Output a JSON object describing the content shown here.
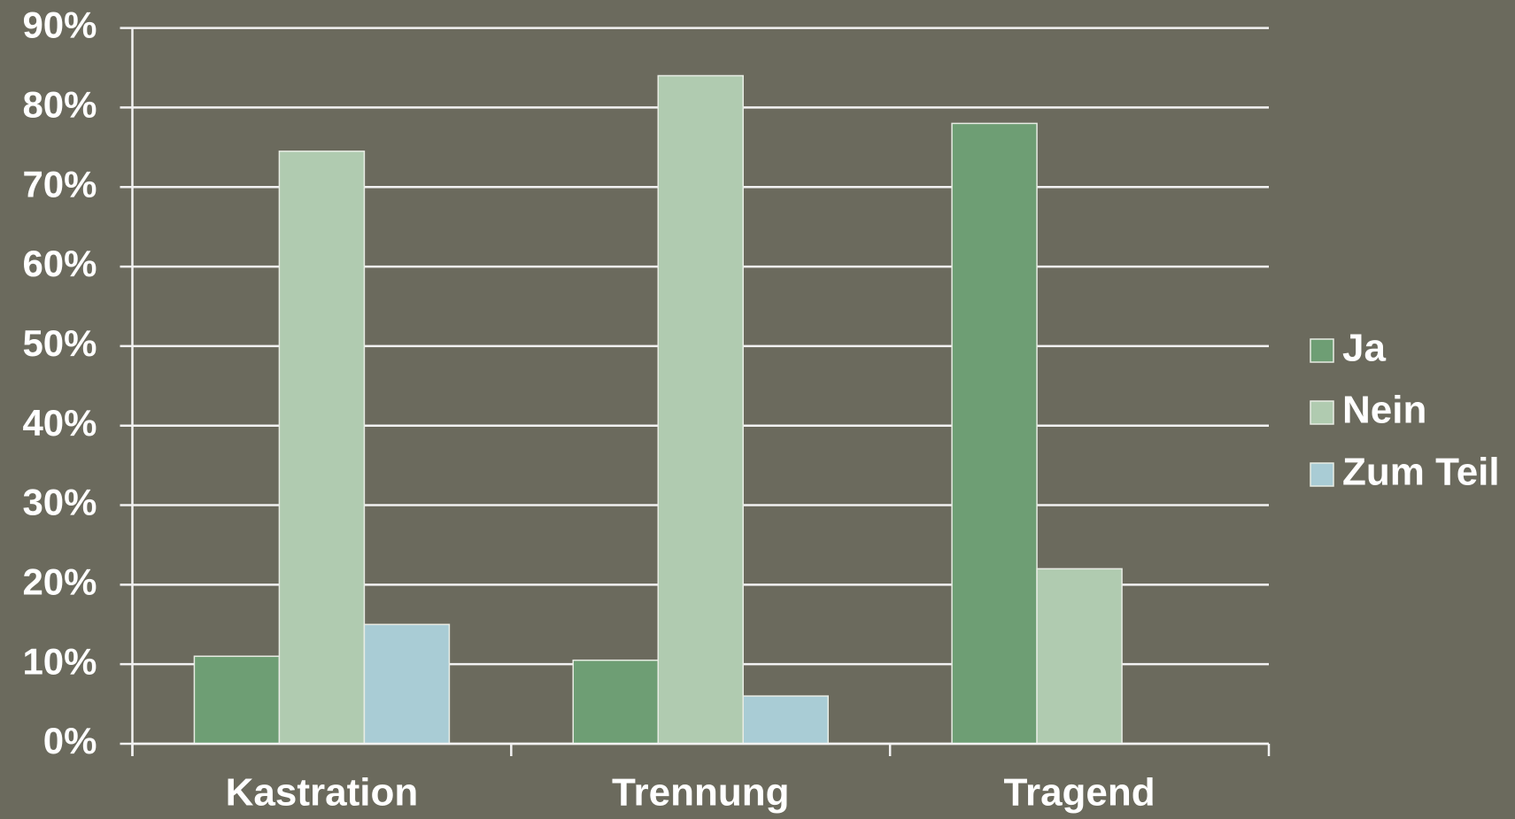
{
  "chart_data": {
    "type": "bar",
    "categories": [
      "Kastration",
      "Trennung",
      "Tragend"
    ],
    "series": [
      {
        "name": "Ja",
        "color": "#6e9e74",
        "values": [
          11,
          10.5,
          78
        ]
      },
      {
        "name": "Nein",
        "color": "#b0cbb0",
        "values": [
          74.5,
          84,
          22
        ]
      },
      {
        "name": "Zum Teil",
        "color": "#a9ccd5",
        "values": [
          15,
          6,
          null
        ]
      }
    ],
    "ylim": [
      0,
      90
    ],
    "yticks": [
      {
        "value": 0,
        "label": "0%"
      },
      {
        "value": 10,
        "label": "10%"
      },
      {
        "value": 20,
        "label": "20%"
      },
      {
        "value": 30,
        "label": "30%"
      },
      {
        "value": 40,
        "label": "40%"
      },
      {
        "value": 50,
        "label": "50%"
      },
      {
        "value": 60,
        "label": "60%"
      },
      {
        "value": 70,
        "label": "70%"
      },
      {
        "value": 80,
        "label": "80%"
      },
      {
        "value": 90,
        "label": "90%"
      }
    ],
    "grid": true,
    "legend": "right"
  }
}
